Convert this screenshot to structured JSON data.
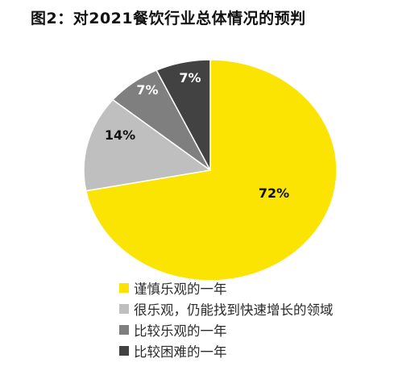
{
  "title": "图2：对2021餐饮行业总体情况的预判",
  "chart_data": {
    "type": "pie",
    "title": "图2：对2021餐饮行业总体情况的预判",
    "start_angle_deg": 0,
    "direction": "clockwise",
    "legend_position": "bottom",
    "slices": [
      {
        "label": "谨慎乐观的一年",
        "value": 72,
        "value_label": "72%",
        "color": "#fbe402"
      },
      {
        "label": "很乐观，仍能找到快速增长的领域",
        "value": 14,
        "value_label": "14%",
        "color": "#bfbfbf"
      },
      {
        "label": "比较乐观的一年",
        "value": 7,
        "value_label": "7%",
        "color": "#7f7f7f"
      },
      {
        "label": "比较困难的一年",
        "value": 7,
        "value_label": "7%",
        "color": "#424242"
      }
    ]
  }
}
